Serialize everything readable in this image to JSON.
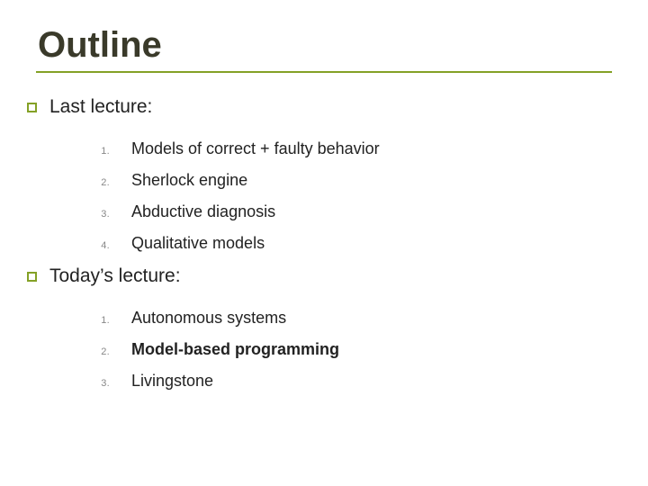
{
  "title": "Outline",
  "accent_color": "#84a126",
  "title_color": "#3a3a2a",
  "text_color": "#222222",
  "number_color": "#888888",
  "background_color": "#ffffff",
  "title_fontsize": 40,
  "section_fontsize": 21,
  "item_fontsize": 18,
  "number_fontsize": 11,
  "sections": [
    {
      "label": "Last lecture:",
      "items": [
        {
          "n": "1.",
          "text": "Models of correct + faulty behavior",
          "bold": false
        },
        {
          "n": "2.",
          "text": "Sherlock engine",
          "bold": false
        },
        {
          "n": "3.",
          "text": "Abductive diagnosis",
          "bold": false
        },
        {
          "n": "4.",
          "text": "Qualitative models",
          "bold": false
        }
      ]
    },
    {
      "label": "Today’s lecture:",
      "items": [
        {
          "n": "1.",
          "text": "Autonomous systems",
          "bold": false
        },
        {
          "n": "2.",
          "text": "Model-based programming",
          "bold": true
        },
        {
          "n": "3.",
          "text": "Livingstone",
          "bold": false
        }
      ]
    }
  ]
}
